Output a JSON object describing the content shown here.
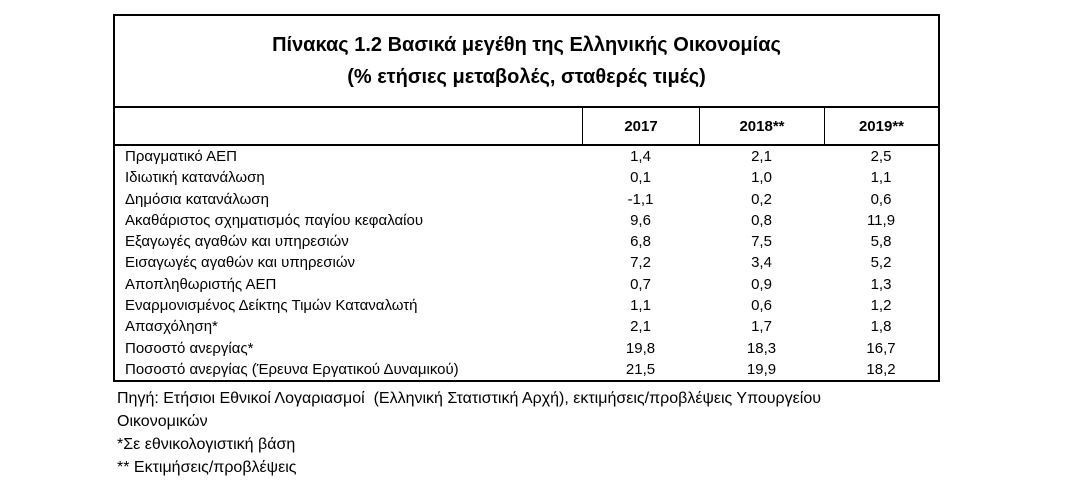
{
  "colors": {
    "background": "#ffffff",
    "border": "#000000",
    "text": "#000000"
  },
  "table": {
    "title_line1": "Πίνακας 1.2 Βασικά μεγέθη της Ελληνικής Οικονομίας",
    "title_line2": "(% ετήσιες μεταβολές, σταθερές τιμές)"
  },
  "chart_data": {
    "type": "table",
    "title": "Πίνακας 1.2 Βασικά μεγέθη της Ελληνικής Οικονομίας",
    "subtitle": "(% ετήσιες μεταβολές, σταθερές τιμές)",
    "columns": [
      "",
      "2017",
      "2018**",
      "2019**"
    ],
    "rows": [
      [
        "Πραγματικό ΑΕΠ",
        "1,4",
        "2,1",
        "2,5"
      ],
      [
        "Ιδιωτική κατανάλωση",
        "0,1",
        "1,0",
        "1,1"
      ],
      [
        "Δημόσια κατανάλωση",
        "-1,1",
        "0,2",
        "0,6"
      ],
      [
        "Ακαθάριστος σχηματισμός παγίου κεφαλαίου",
        "9,6",
        "0,8",
        "11,9"
      ],
      [
        "Εξαγωγές αγαθών και υπηρεσιών",
        "6,8",
        "7,5",
        "5,8"
      ],
      [
        "Εισαγωγές αγαθών και υπηρεσιών",
        "7,2",
        "3,4",
        "5,2"
      ],
      [
        "Αποπληθωριστής ΑΕΠ",
        "0,7",
        "0,9",
        "1,3"
      ],
      [
        "Εναρμονισμένος Δείκτης Τιμών Καταναλωτή",
        "1,1",
        "0,6",
        "1,2"
      ],
      [
        "Απασχόληση*",
        "2,1",
        "1,7",
        "1,8"
      ],
      [
        "Ποσοστό ανεργίας*",
        "19,8",
        "18,3",
        "16,7"
      ],
      [
        "Ποσοστό ανεργίας (Έρευνα Εργατικού Δυναμικού)",
        "21,5",
        "19,9",
        "18,2"
      ]
    ]
  },
  "footnotes": {
    "lines": [
      "Πηγή: Ετήσιοι Εθνικοί Λογαριασμοί  (Ελληνική Στατιστική Αρχή), εκτιμήσεις/προβλέψεις Υπουργείου",
      "Οικονομικών",
      "*Σε εθνικολογιστική βάση",
      "** Εκτιμήσεις/προβλέψεις"
    ]
  }
}
